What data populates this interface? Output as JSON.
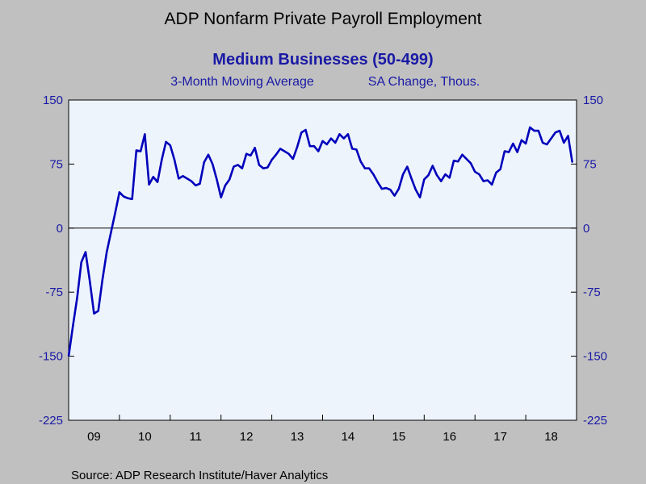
{
  "colors": {
    "page_bg": "#c0c0c0",
    "plot_bg": "#eef4fc",
    "series": "#0000bb",
    "accent_text": "#1a1aa6",
    "axis": "#000000"
  },
  "chart_data": {
    "type": "line",
    "title": "ADP Nonfarm Private Payroll Employment",
    "subtitle": "Medium Businesses (50-499)",
    "subtitle_left": "3-Month Moving Average",
    "subtitle_right": "SA Change, Thous.",
    "source": "Source:  ADP Research Institute/Haver Analytics",
    "xlabel": "",
    "ylabel": "",
    "grid": false,
    "legend": "none",
    "ylim": [
      -225,
      150
    ],
    "xlim": [
      2009.0,
      2019.0
    ],
    "yticks": [
      150,
      75,
      0,
      -75,
      -150,
      -225
    ],
    "ytick_labels": [
      "150",
      "75",
      "0",
      "-75",
      "-150",
      "-225"
    ],
    "xtick_labels": [
      "09",
      "10",
      "11",
      "12",
      "13",
      "14",
      "15",
      "16",
      "17",
      "18"
    ],
    "zero_line": true,
    "series": [
      {
        "start": "2009-01",
        "frequency": "monthly",
        "values": [
          -150,
          -115,
          -82,
          -40,
          -28,
          -62,
          -100,
          -97,
          -60,
          -28,
          -5,
          18,
          42,
          37,
          35,
          34,
          91,
          90,
          110,
          51,
          60,
          54,
          80,
          101,
          97,
          80,
          58,
          61,
          58,
          55,
          50,
          52,
          77,
          86,
          75,
          57,
          36,
          50,
          57,
          72,
          74,
          70,
          87,
          85,
          94,
          74,
          70,
          71,
          80,
          86,
          93,
          90,
          87,
          81,
          95,
          112,
          115,
          96,
          96,
          90,
          102,
          98,
          105,
          100,
          110,
          105,
          110,
          93,
          92,
          78,
          70,
          70,
          63,
          54,
          46,
          47,
          45,
          38,
          46,
          63,
          72,
          58,
          45,
          36,
          57,
          62,
          73,
          62,
          55,
          63,
          59,
          79,
          78,
          86,
          81,
          76,
          66,
          63,
          55,
          56,
          51,
          65,
          69,
          90,
          89,
          99,
          89,
          103,
          99,
          118,
          114,
          114,
          100,
          98,
          105,
          112,
          114,
          100,
          108,
          77
        ]
      }
    ]
  }
}
